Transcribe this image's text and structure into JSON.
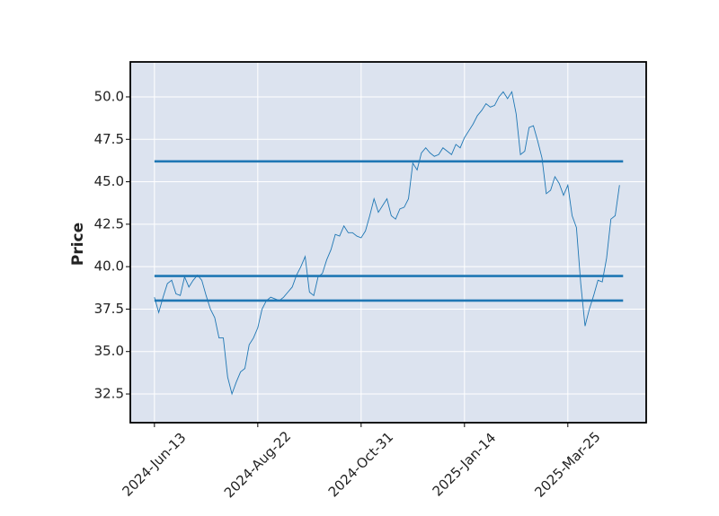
{
  "chart_data": {
    "type": "line",
    "ylabel": "Price",
    "categories": [
      "2024-Jun-13",
      null,
      null,
      null,
      null,
      null,
      null,
      null,
      null,
      null,
      null,
      null,
      null,
      null,
      null,
      null,
      null,
      null,
      null,
      null,
      null,
      null,
      null,
      null,
      "2024-Aug-22",
      null,
      null,
      null,
      null,
      null,
      null,
      null,
      null,
      null,
      null,
      null,
      null,
      null,
      null,
      null,
      null,
      null,
      null,
      null,
      null,
      null,
      null,
      null,
      "2024-Oct-31",
      null,
      null,
      null,
      null,
      null,
      null,
      null,
      null,
      null,
      null,
      null,
      null,
      null,
      null,
      null,
      null,
      null,
      null,
      null,
      null,
      null,
      null,
      null,
      "2025-Jan-14",
      null,
      null,
      null,
      null,
      null,
      null,
      null,
      null,
      null,
      null,
      null,
      null,
      null,
      null,
      null,
      null,
      null,
      null,
      null,
      null,
      null,
      null,
      null,
      "2025-Mar-25",
      null,
      null,
      null,
      null,
      null,
      null,
      null,
      null,
      null,
      null,
      null,
      null
    ],
    "series": [
      {
        "color": "#1f77b4",
        "values": [
          38.2,
          37.3,
          38.2,
          39.0,
          39.2,
          38.4,
          38.3,
          39.4,
          38.8,
          39.2,
          39.5,
          39.2,
          38.3,
          37.5,
          37.0,
          35.8,
          35.8,
          33.5,
          32.5,
          33.2,
          33.8,
          34.0,
          35.4,
          35.8,
          36.4,
          37.5,
          38.0,
          38.2,
          38.1,
          38.0,
          38.2,
          38.5,
          38.8,
          39.5,
          40.0,
          40.6,
          38.5,
          38.3,
          39.4,
          39.6,
          40.4,
          41.0,
          41.9,
          41.8,
          42.4,
          42.0,
          42.0,
          41.8,
          41.7,
          42.1,
          43.0,
          44.0,
          43.2,
          43.6,
          44.0,
          43.0,
          42.8,
          43.4,
          43.5,
          44.0,
          46.1,
          45.7,
          46.7,
          47.0,
          46.7,
          46.5,
          46.6,
          47.0,
          46.8,
          46.6,
          47.2,
          47.0,
          47.6,
          48.0,
          48.4,
          48.9,
          49.2,
          49.6,
          49.4,
          49.5,
          50.0,
          50.3,
          49.9,
          50.3,
          49.0,
          46.6,
          46.8,
          48.2,
          48.3,
          47.4,
          46.4,
          44.3,
          44.5,
          45.3,
          44.9,
          44.2,
          44.8,
          43.0,
          42.3,
          39.0,
          36.5,
          37.5,
          38.3,
          39.2,
          39.1,
          40.5,
          42.8,
          43.0,
          44.8
        ]
      }
    ],
    "hlines": [
      46.2,
      39.45,
      38.0
    ],
    "hline_color": "#1f77b4",
    "xlim": [
      -5.6,
      114.2
    ],
    "ylim": [
      30.81,
      52.06
    ],
    "yticks": [
      32.5,
      {
        "value": 35,
        "label": "35.0"
      },
      37.5,
      {
        "value": 40,
        "label": "40.0"
      },
      42.5,
      {
        "value": 45,
        "label": "45.0"
      },
      47.5,
      {
        "value": 50,
        "label": "50.0"
      }
    ],
    "grid": true,
    "background": "#dce3ef"
  }
}
